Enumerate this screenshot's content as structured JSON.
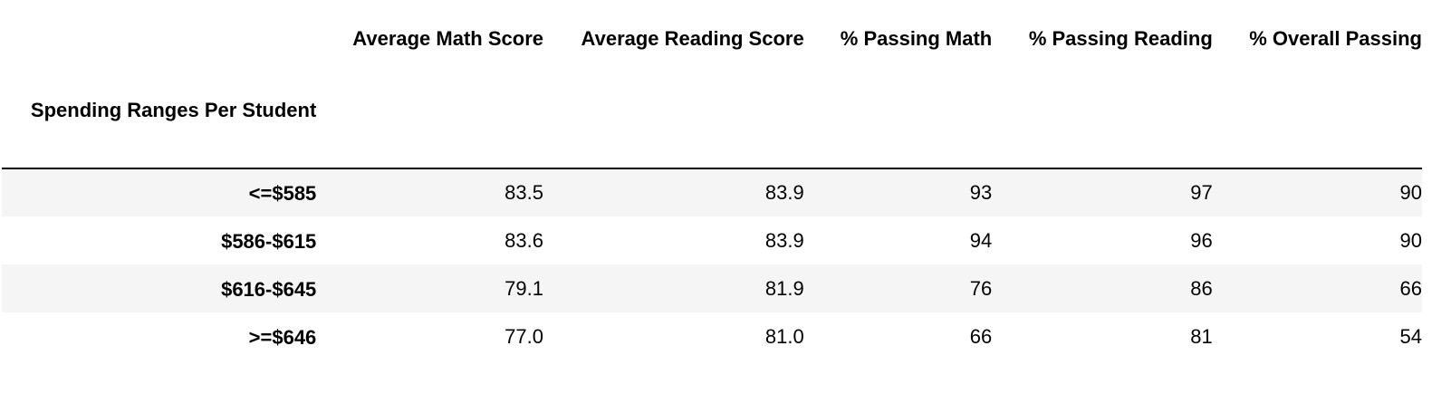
{
  "table": {
    "index_name": "Spending Ranges Per Student",
    "columns": [
      "Average Math Score",
      "Average Reading Score",
      "% Passing Math",
      "% Passing Reading",
      "% Overall Passing"
    ],
    "rows": [
      {
        "index": "<=$585",
        "cells": [
          "83.5",
          "83.9",
          "93",
          "97",
          "90"
        ]
      },
      {
        "index": "$586-$615",
        "cells": [
          "83.6",
          "83.9",
          "94",
          "96",
          "90"
        ]
      },
      {
        "index": "$616-$645",
        "cells": [
          "79.1",
          "81.9",
          "76",
          "86",
          "66"
        ]
      },
      {
        "index": ">=$646",
        "cells": [
          "77.0",
          "81.0",
          "66",
          "81",
          "54"
        ]
      }
    ]
  },
  "colors": {
    "stripe": "#f5f5f5",
    "header_rule": "#000000",
    "text": "#000000"
  }
}
